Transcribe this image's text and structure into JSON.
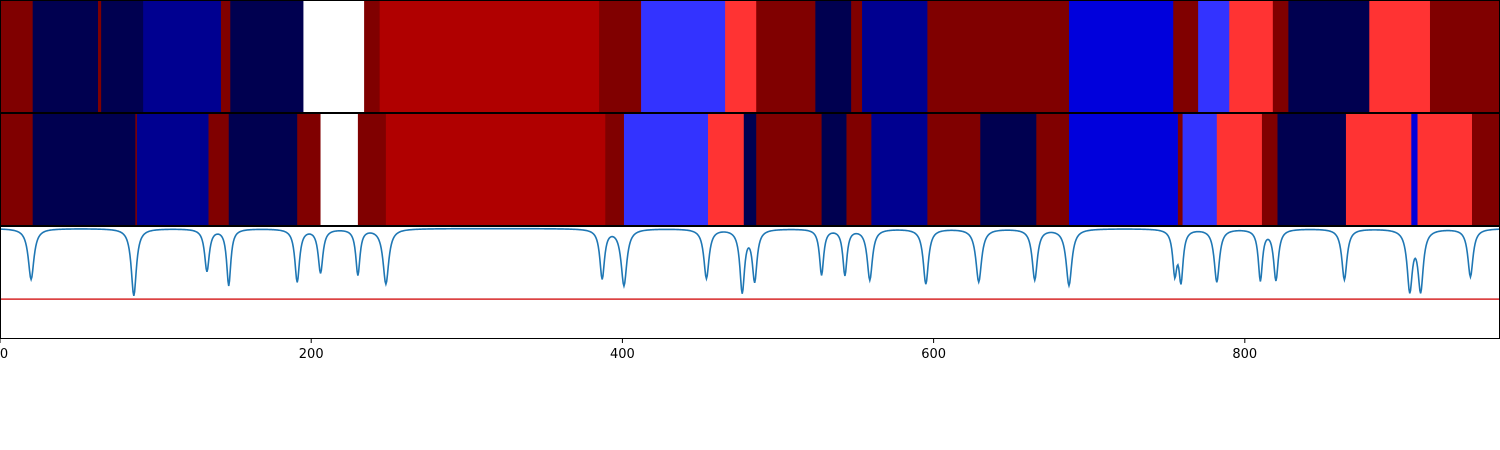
{
  "chart_data": [
    {
      "type": "heatmap",
      "title": "",
      "xlim": [
        0,
        964
      ],
      "palette": {
        "dark_navy": "#000050",
        "navy": "#000090",
        "blue": "#0000dc",
        "light_blue": "#3333ff",
        "white": "#ffffff",
        "dark_red": "#800000",
        "red": "#b00000",
        "light_red": "#ff3333"
      },
      "segments": [
        {
          "start": 0,
          "end": 21,
          "color": "#800000"
        },
        {
          "start": 21,
          "end": 63,
          "color": "#000050"
        },
        {
          "start": 63,
          "end": 65,
          "color": "#800000"
        },
        {
          "start": 65,
          "end": 92,
          "color": "#000050"
        },
        {
          "start": 92,
          "end": 142,
          "color": "#000090"
        },
        {
          "start": 142,
          "end": 148,
          "color": "#800000"
        },
        {
          "start": 148,
          "end": 195,
          "color": "#000050"
        },
        {
          "start": 195,
          "end": 234,
          "color": "#ffffff"
        },
        {
          "start": 234,
          "end": 244,
          "color": "#800000"
        },
        {
          "start": 244,
          "end": 385,
          "color": "#b00000"
        },
        {
          "start": 385,
          "end": 412,
          "color": "#800000"
        },
        {
          "start": 412,
          "end": 466,
          "color": "#3333ff"
        },
        {
          "start": 466,
          "end": 486,
          "color": "#ff3333"
        },
        {
          "start": 486,
          "end": 524,
          "color": "#800000"
        },
        {
          "start": 524,
          "end": 547,
          "color": "#000050"
        },
        {
          "start": 547,
          "end": 554,
          "color": "#800000"
        },
        {
          "start": 554,
          "end": 596,
          "color": "#000090"
        },
        {
          "start": 596,
          "end": 687,
          "color": "#800000"
        },
        {
          "start": 687,
          "end": 754,
          "color": "#0000dc"
        },
        {
          "start": 754,
          "end": 770,
          "color": "#800000"
        },
        {
          "start": 770,
          "end": 790,
          "color": "#3333ff"
        },
        {
          "start": 790,
          "end": 818,
          "color": "#ff3333"
        },
        {
          "start": 818,
          "end": 828,
          "color": "#800000"
        },
        {
          "start": 828,
          "end": 880,
          "color": "#000050"
        },
        {
          "start": 880,
          "end": 919,
          "color": "#ff3333"
        },
        {
          "start": 919,
          "end": 964,
          "color": "#800000"
        }
      ]
    },
    {
      "type": "heatmap",
      "title": "",
      "xlim": [
        0,
        964
      ],
      "segments": [
        {
          "start": 0,
          "end": 21,
          "color": "#800000"
        },
        {
          "start": 21,
          "end": 87,
          "color": "#000050"
        },
        {
          "start": 87,
          "end": 88,
          "color": "#800000"
        },
        {
          "start": 88,
          "end": 134,
          "color": "#000090"
        },
        {
          "start": 134,
          "end": 147,
          "color": "#800000"
        },
        {
          "start": 147,
          "end": 191,
          "color": "#000050"
        },
        {
          "start": 191,
          "end": 206,
          "color": "#800000"
        },
        {
          "start": 206,
          "end": 230,
          "color": "#ffffff"
        },
        {
          "start": 230,
          "end": 248,
          "color": "#800000"
        },
        {
          "start": 248,
          "end": 389,
          "color": "#b00000"
        },
        {
          "start": 389,
          "end": 401,
          "color": "#800000"
        },
        {
          "start": 401,
          "end": 455,
          "color": "#3333ff"
        },
        {
          "start": 455,
          "end": 478,
          "color": "#ff3333"
        },
        {
          "start": 478,
          "end": 486,
          "color": "#000050"
        },
        {
          "start": 486,
          "end": 528,
          "color": "#800000"
        },
        {
          "start": 528,
          "end": 544,
          "color": "#000050"
        },
        {
          "start": 544,
          "end": 560,
          "color": "#800000"
        },
        {
          "start": 560,
          "end": 596,
          "color": "#000090"
        },
        {
          "start": 596,
          "end": 630,
          "color": "#800000"
        },
        {
          "start": 630,
          "end": 666,
          "color": "#000050"
        },
        {
          "start": 666,
          "end": 687,
          "color": "#800000"
        },
        {
          "start": 687,
          "end": 757,
          "color": "#0000dc"
        },
        {
          "start": 757,
          "end": 760,
          "color": "#800000"
        },
        {
          "start": 760,
          "end": 782,
          "color": "#3333ff"
        },
        {
          "start": 782,
          "end": 811,
          "color": "#ff3333"
        },
        {
          "start": 811,
          "end": 821,
          "color": "#800000"
        },
        {
          "start": 821,
          "end": 865,
          "color": "#000050"
        },
        {
          "start": 865,
          "end": 907,
          "color": "#ff3333"
        },
        {
          "start": 907,
          "end": 911,
          "color": "#0000dc"
        },
        {
          "start": 911,
          "end": 946,
          "color": "#ff3333"
        },
        {
          "start": 946,
          "end": 964,
          "color": "#800000"
        }
      ]
    },
    {
      "type": "line",
      "title": "",
      "xlabel": "",
      "ylabel": "",
      "xlim": [
        0,
        964
      ],
      "ylim": [
        -1.55,
        0.02
      ],
      "xticks": [
        0,
        200,
        400,
        600,
        800
      ],
      "xtick_labels": [
        "0",
        "200",
        "400",
        "600",
        "800"
      ],
      "grid": false,
      "series": [
        {
          "color": "#1f77b4",
          "baseline": 0,
          "dips": [
            {
              "x": 20,
              "depth": 0.72,
              "width": 2.2
            },
            {
              "x": 86,
              "depth": 0.95,
              "width": 2.0
            },
            {
              "x": 133,
              "depth": 0.6,
              "width": 1.8
            },
            {
              "x": 147,
              "depth": 0.8,
              "width": 1.6
            },
            {
              "x": 191,
              "depth": 0.75,
              "width": 1.8
            },
            {
              "x": 206,
              "depth": 0.62,
              "width": 1.8
            },
            {
              "x": 230,
              "depth": 0.65,
              "width": 1.6
            },
            {
              "x": 248,
              "depth": 0.78,
              "width": 2.2
            },
            {
              "x": 387,
              "depth": 0.7,
              "width": 1.8
            },
            {
              "x": 401,
              "depth": 0.8,
              "width": 2.2
            },
            {
              "x": 454,
              "depth": 0.7,
              "width": 2.0
            },
            {
              "x": 477,
              "depth": 0.88,
              "width": 1.8
            },
            {
              "x": 485,
              "depth": 0.72,
              "width": 1.8
            },
            {
              "x": 528,
              "depth": 0.65,
              "width": 1.6
            },
            {
              "x": 543,
              "depth": 0.65,
              "width": 1.6
            },
            {
              "x": 559,
              "depth": 0.72,
              "width": 2.0
            },
            {
              "x": 595,
              "depth": 0.78,
              "width": 2.0
            },
            {
              "x": 629,
              "depth": 0.75,
              "width": 2.2
            },
            {
              "x": 665,
              "depth": 0.72,
              "width": 2.0
            },
            {
              "x": 687,
              "depth": 0.8,
              "width": 2.2
            },
            {
              "x": 755,
              "depth": 0.6,
              "width": 1.6
            },
            {
              "x": 759,
              "depth": 0.7,
              "width": 1.6
            },
            {
              "x": 782,
              "depth": 0.75,
              "width": 2.0
            },
            {
              "x": 810,
              "depth": 0.72,
              "width": 1.6
            },
            {
              "x": 820,
              "depth": 0.72,
              "width": 1.8
            },
            {
              "x": 864,
              "depth": 0.72,
              "width": 2.0
            },
            {
              "x": 906,
              "depth": 0.85,
              "width": 2.0
            },
            {
              "x": 913,
              "depth": 0.85,
              "width": 2.0
            },
            {
              "x": 945,
              "depth": 0.68,
              "width": 2.0
            }
          ]
        }
      ],
      "threshold": {
        "y": -1.0,
        "color": "#d62728"
      }
    }
  ]
}
